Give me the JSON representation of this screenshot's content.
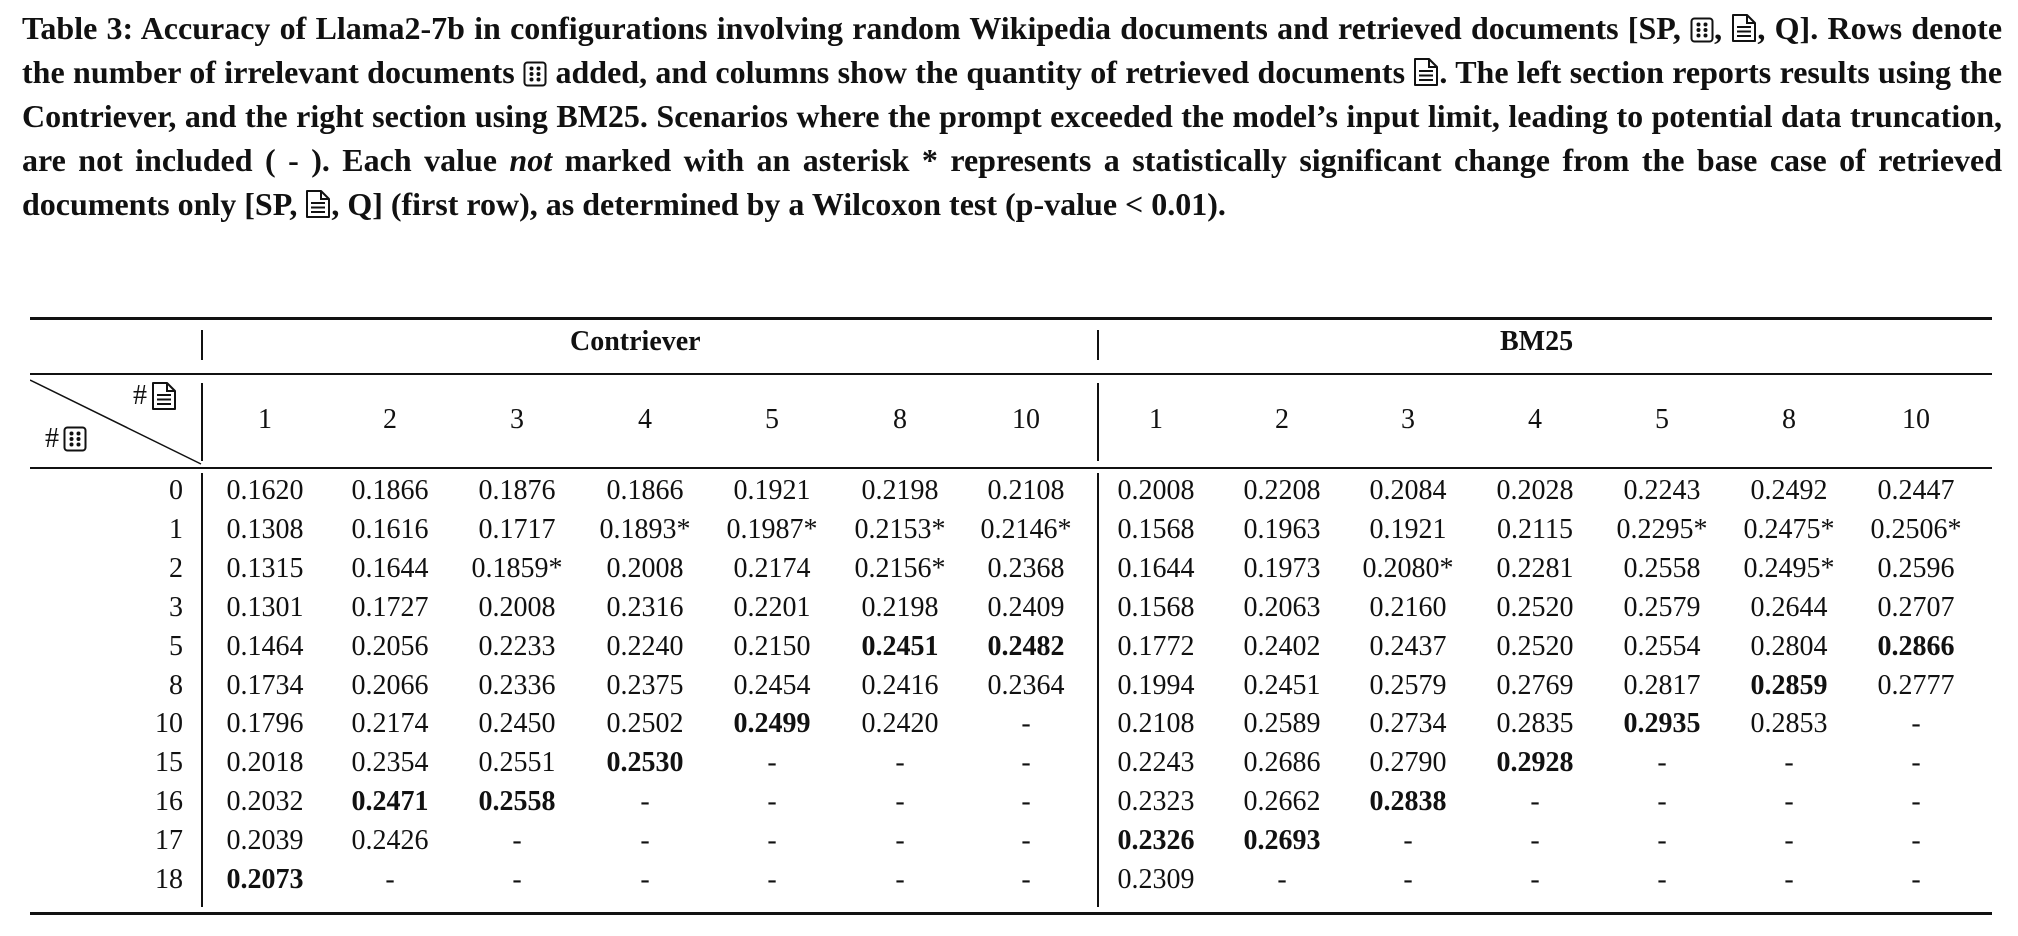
{
  "caption": {
    "p1": "Table 3: Accuracy of Llama2-7b in configurations involving random Wikipedia documents and retrieved documents [SP,",
    "p2": ",",
    "p3": ", Q]. Rows denote the number of irrelevant documents",
    "p4": "added, and columns show the quantity of retrieved documents",
    "p5": ". The left section reports results using the Contriever, and the right section using BM25. Scenarios where the prompt exceeded the model’s input limit, leading to potential data truncation, are not included ( - ). Each value",
    "p6": "not",
    "p7": "marked with an asterisk * represents a statistically significant change from the base case of retrieved documents only [SP,",
    "p8": ", Q] (first row), as determined by a Wilcoxon test (p-value < 0.01)."
  },
  "icons": {
    "random_doc": "dice-icon",
    "retrieved_doc": "document-icon"
  },
  "corner": {
    "col_label": "#",
    "row_label": "#"
  },
  "groups": {
    "left": "Contriever",
    "right": "BM25"
  },
  "columns": [
    "1",
    "2",
    "3",
    "4",
    "5",
    "8",
    "10"
  ],
  "rows": [
    {
      "label": "0",
      "contriever": [
        [
          "0.1620",
          0
        ],
        [
          "0.1866",
          0
        ],
        [
          "0.1876",
          0
        ],
        [
          "0.1866",
          0
        ],
        [
          "0.1921",
          0
        ],
        [
          "0.2198",
          0
        ],
        [
          "0.2108",
          0
        ]
      ],
      "bm25": [
        [
          "0.2008",
          0
        ],
        [
          "0.2208",
          0
        ],
        [
          "0.2084",
          0
        ],
        [
          "0.2028",
          0
        ],
        [
          "0.2243",
          0
        ],
        [
          "0.2492",
          0
        ],
        [
          "0.2447",
          0
        ]
      ]
    },
    {
      "label": "1",
      "contriever": [
        [
          "0.1308",
          0
        ],
        [
          "0.1616",
          0
        ],
        [
          "0.1717",
          0
        ],
        [
          "0.1893*",
          0
        ],
        [
          "0.1987*",
          0
        ],
        [
          "0.2153*",
          0
        ],
        [
          "0.2146*",
          0
        ]
      ],
      "bm25": [
        [
          "0.1568",
          0
        ],
        [
          "0.1963",
          0
        ],
        [
          "0.1921",
          0
        ],
        [
          "0.2115",
          0
        ],
        [
          "0.2295*",
          0
        ],
        [
          "0.2475*",
          0
        ],
        [
          "0.2506*",
          0
        ]
      ]
    },
    {
      "label": "2",
      "contriever": [
        [
          "0.1315",
          0
        ],
        [
          "0.1644",
          0
        ],
        [
          "0.1859*",
          0
        ],
        [
          "0.2008",
          0
        ],
        [
          "0.2174",
          0
        ],
        [
          "0.2156*",
          0
        ],
        [
          "0.2368",
          0
        ]
      ],
      "bm25": [
        [
          "0.1644",
          0
        ],
        [
          "0.1973",
          0
        ],
        [
          "0.2080*",
          0
        ],
        [
          "0.2281",
          0
        ],
        [
          "0.2558",
          0
        ],
        [
          "0.2495*",
          0
        ],
        [
          "0.2596",
          0
        ]
      ]
    },
    {
      "label": "3",
      "contriever": [
        [
          "0.1301",
          0
        ],
        [
          "0.1727",
          0
        ],
        [
          "0.2008",
          0
        ],
        [
          "0.2316",
          0
        ],
        [
          "0.2201",
          0
        ],
        [
          "0.2198",
          0
        ],
        [
          "0.2409",
          0
        ]
      ],
      "bm25": [
        [
          "0.1568",
          0
        ],
        [
          "0.2063",
          0
        ],
        [
          "0.2160",
          0
        ],
        [
          "0.2520",
          0
        ],
        [
          "0.2579",
          0
        ],
        [
          "0.2644",
          0
        ],
        [
          "0.2707",
          0
        ]
      ]
    },
    {
      "label": "5",
      "contriever": [
        [
          "0.1464",
          0
        ],
        [
          "0.2056",
          0
        ],
        [
          "0.2233",
          0
        ],
        [
          "0.2240",
          0
        ],
        [
          "0.2150",
          0
        ],
        [
          "0.2451",
          1
        ],
        [
          "0.2482",
          1
        ]
      ],
      "bm25": [
        [
          "0.1772",
          0
        ],
        [
          "0.2402",
          0
        ],
        [
          "0.2437",
          0
        ],
        [
          "0.2520",
          0
        ],
        [
          "0.2554",
          0
        ],
        [
          "0.2804",
          0
        ],
        [
          "0.2866",
          1
        ]
      ]
    },
    {
      "label": "8",
      "contriever": [
        [
          "0.1734",
          0
        ],
        [
          "0.2066",
          0
        ],
        [
          "0.2336",
          0
        ],
        [
          "0.2375",
          0
        ],
        [
          "0.2454",
          0
        ],
        [
          "0.2416",
          0
        ],
        [
          "0.2364",
          0
        ]
      ],
      "bm25": [
        [
          "0.1994",
          0
        ],
        [
          "0.2451",
          0
        ],
        [
          "0.2579",
          0
        ],
        [
          "0.2769",
          0
        ],
        [
          "0.2817",
          0
        ],
        [
          "0.2859",
          1
        ],
        [
          "0.2777",
          0
        ]
      ]
    },
    {
      "label": "10",
      "contriever": [
        [
          "0.1796",
          0
        ],
        [
          "0.2174",
          0
        ],
        [
          "0.2450",
          0
        ],
        [
          "0.2502",
          0
        ],
        [
          "0.2499",
          1
        ],
        [
          "0.2420",
          0
        ],
        [
          "-",
          0
        ]
      ],
      "bm25": [
        [
          "0.2108",
          0
        ],
        [
          "0.2589",
          0
        ],
        [
          "0.2734",
          0
        ],
        [
          "0.2835",
          0
        ],
        [
          "0.2935",
          1
        ],
        [
          "0.2853",
          0
        ],
        [
          "-",
          0
        ]
      ]
    },
    {
      "label": "15",
      "contriever": [
        [
          "0.2018",
          0
        ],
        [
          "0.2354",
          0
        ],
        [
          "0.2551",
          0
        ],
        [
          "0.2530",
          1
        ],
        [
          "-",
          0
        ],
        [
          "-",
          0
        ],
        [
          "-",
          0
        ]
      ],
      "bm25": [
        [
          "0.2243",
          0
        ],
        [
          "0.2686",
          0
        ],
        [
          "0.2790",
          0
        ],
        [
          "0.2928",
          1
        ],
        [
          "-",
          0
        ],
        [
          "-",
          0
        ],
        [
          "-",
          0
        ]
      ]
    },
    {
      "label": "16",
      "contriever": [
        [
          "0.2032",
          0
        ],
        [
          "0.2471",
          1
        ],
        [
          "0.2558",
          1
        ],
        [
          "-",
          0
        ],
        [
          "-",
          0
        ],
        [
          "-",
          0
        ],
        [
          "-",
          0
        ]
      ],
      "bm25": [
        [
          "0.2323",
          0
        ],
        [
          "0.2662",
          0
        ],
        [
          "0.2838",
          1
        ],
        [
          "-",
          0
        ],
        [
          "-",
          0
        ],
        [
          "-",
          0
        ],
        [
          "-",
          0
        ]
      ]
    },
    {
      "label": "17",
      "contriever": [
        [
          "0.2039",
          0
        ],
        [
          "0.2426",
          0
        ],
        [
          "-",
          0
        ],
        [
          "-",
          0
        ],
        [
          "-",
          0
        ],
        [
          "-",
          0
        ],
        [
          "-",
          0
        ]
      ],
      "bm25": [
        [
          "0.2326",
          1
        ],
        [
          "0.2693",
          1
        ],
        [
          "-",
          0
        ],
        [
          "-",
          0
        ],
        [
          "-",
          0
        ],
        [
          "-",
          0
        ],
        [
          "-",
          0
        ]
      ]
    },
    {
      "label": "18",
      "contriever": [
        [
          "0.2073",
          1
        ],
        [
          "-",
          0
        ],
        [
          "-",
          0
        ],
        [
          "-",
          0
        ],
        [
          "-",
          0
        ],
        [
          "-",
          0
        ],
        [
          "-",
          0
        ]
      ],
      "bm25": [
        [
          "0.2309",
          0
        ],
        [
          "-",
          0
        ],
        [
          "-",
          0
        ],
        [
          "-",
          0
        ],
        [
          "-",
          0
        ],
        [
          "-",
          0
        ],
        [
          "-",
          0
        ]
      ]
    }
  ]
}
